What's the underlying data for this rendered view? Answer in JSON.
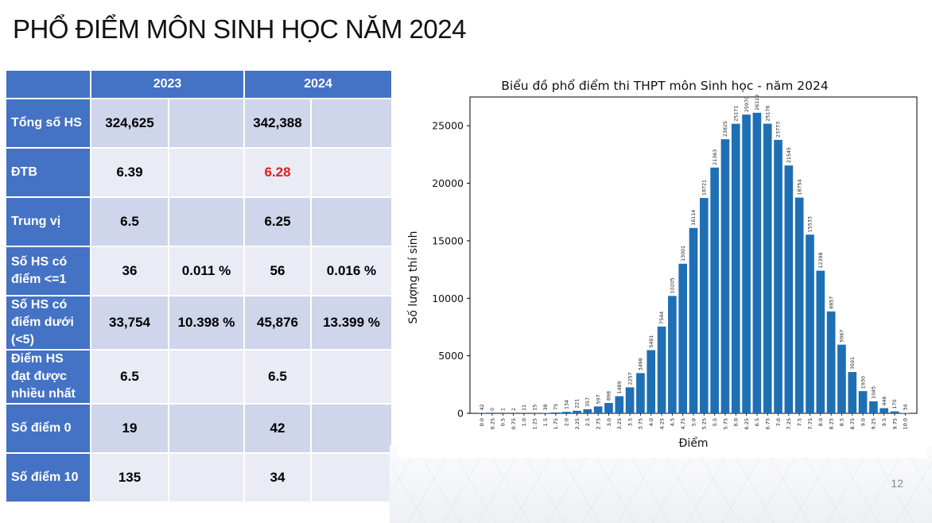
{
  "slide": {
    "title": "PHỔ ĐIỂM MÔN SINH HỌC NĂM 2024",
    "page_number": "12"
  },
  "table": {
    "headers": [
      "",
      "2023",
      "2024"
    ],
    "rows": [
      {
        "label": "Tổng số HS",
        "v2023": "324,625",
        "p2023": "",
        "v2024": "342,388",
        "p2024": ""
      },
      {
        "label": "ĐTB",
        "v2023": "6.39",
        "p2023": "",
        "v2024": "6.28",
        "p2024": ""
      },
      {
        "label": "Trung vị",
        "v2023": "6.5",
        "p2023": "",
        "v2024": "6.25",
        "p2024": ""
      },
      {
        "label": "Số HS có điểm <=1",
        "v2023": "36",
        "p2023": "0.011 %",
        "v2024": "56",
        "p2024": "0.016 %"
      },
      {
        "label": "Số HS có điểm dưới (<5)",
        "v2023": "33,754",
        "p2023": "10.398 %",
        "v2024": "45,876",
        "p2024": "13.399 %"
      },
      {
        "label": "Điểm HS đạt được nhiều nhất",
        "v2023": "6.5",
        "p2023": "",
        "v2024": "6.5",
        "p2024": ""
      },
      {
        "label": "Số điểm 0",
        "v2023": "19",
        "p2023": "",
        "v2024": "42",
        "p2024": ""
      },
      {
        "label": "Số điểm 10",
        "v2023": "135",
        "p2023": "",
        "v2024": "34",
        "p2024": ""
      }
    ],
    "highlight_color": "#e0201b"
  },
  "chart_data": {
    "type": "bar",
    "title": "Biểu đồ phổ điểm thi THPT môn Sinh học - năm 2024",
    "xlabel": "Điểm",
    "ylabel": "Số lượng thí sinh",
    "categories": [
      "0.0",
      "0.25",
      "0.5",
      "0.75",
      "1.0",
      "1.25",
      "1.5",
      "1.75",
      "2.0",
      "2.25",
      "2.5",
      "2.75",
      "3.0",
      "3.25",
      "3.5",
      "3.75",
      "4.0",
      "4.25",
      "4.5",
      "4.75",
      "5.0",
      "5.25",
      "5.5",
      "5.75",
      "6.0",
      "6.25",
      "6.5",
      "6.75",
      "7.0",
      "7.25",
      "7.5",
      "7.75",
      "8.0",
      "8.25",
      "8.5",
      "8.75",
      "9.0",
      "9.25",
      "9.5",
      "9.75",
      "10.0"
    ],
    "values": [
      42,
      0,
      1,
      2,
      11,
      15,
      38,
      75,
      134,
      221,
      357,
      597,
      898,
      1489,
      2257,
      3498,
      5491,
      7544,
      10205,
      13001,
      16114,
      18721,
      21363,
      23825,
      25171,
      25970,
      26129,
      25176,
      23773,
      21545,
      18754,
      15533,
      12398,
      8857,
      5967,
      3591,
      1930,
      1045,
      446,
      170,
      34
    ],
    "ylim": [
      0,
      27500
    ],
    "yticks": [
      0,
      5000,
      10000,
      15000,
      20000,
      25000
    ],
    "bar_color": "#1f6fb4",
    "grid": false
  }
}
